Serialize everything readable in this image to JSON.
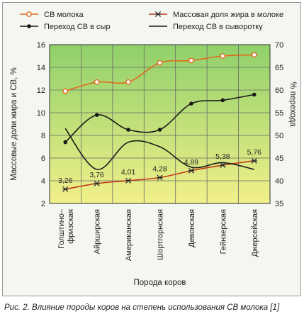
{
  "caption": "Рис. 2. Влияние породы коров на степень использования СВ молока [1]",
  "chart_data": {
    "type": "line",
    "categories": [
      "Голштино-фризская",
      "Айрширская",
      "Американская",
      "Шортгорнская",
      "Девонская",
      "Гейнзерская",
      "Джерсейская"
    ],
    "category_lines": [
      [
        "Голштино–",
        "фризская"
      ],
      [
        "Айрширская"
      ],
      [
        "Американская"
      ],
      [
        "Шортгорнская"
      ],
      [
        "Девонская"
      ],
      [
        "Гейнзерская"
      ],
      [
        "Джерсейская"
      ]
    ],
    "xlabel": "Порода коров",
    "ylabel_left": "Массовые доли жира и СВ, %",
    "ylabel_right": "% перехода",
    "y_left": {
      "min": 2,
      "max": 16,
      "ticks": [
        2,
        4,
        6,
        8,
        10,
        12,
        14,
        16
      ]
    },
    "y_right": {
      "min": 35,
      "max": 70,
      "ticks": [
        35,
        40,
        45,
        50,
        55,
        60,
        65,
        70
      ]
    },
    "background_gradient": [
      "#8fd06a",
      "#f2f08a"
    ],
    "legend_placement": "top",
    "series": [
      {
        "name": "СВ молока",
        "axis": "left",
        "color": "#e06a1c",
        "marker": "circle",
        "values": [
          11.9,
          12.7,
          12.7,
          14.4,
          14.6,
          15.0,
          15.1
        ]
      },
      {
        "name": "Массовая доля жира в молоке",
        "axis": "left",
        "color": "#c2391b",
        "marker": "asterisk",
        "values": [
          3.26,
          3.76,
          4.01,
          4.28,
          4.89,
          5.38,
          5.76
        ],
        "data_labels": [
          "3,26",
          "3,76",
          "4,01",
          "4,28",
          "4,89",
          "5,38",
          "5,76"
        ]
      },
      {
        "name": "Переход СВ в сыр",
        "axis": "left",
        "color": "#1a1a1a",
        "marker": "dot",
        "values": [
          7.4,
          9.8,
          8.5,
          8.5,
          10.8,
          11.1,
          11.6
        ]
      },
      {
        "name": "Переход СВ в сыворотку",
        "axis": "right",
        "color": "#1a1a1a",
        "marker": "none",
        "values": [
          51.5,
          42.5,
          48.5,
          47.5,
          43.0,
          44.0,
          42.5
        ]
      }
    ]
  }
}
